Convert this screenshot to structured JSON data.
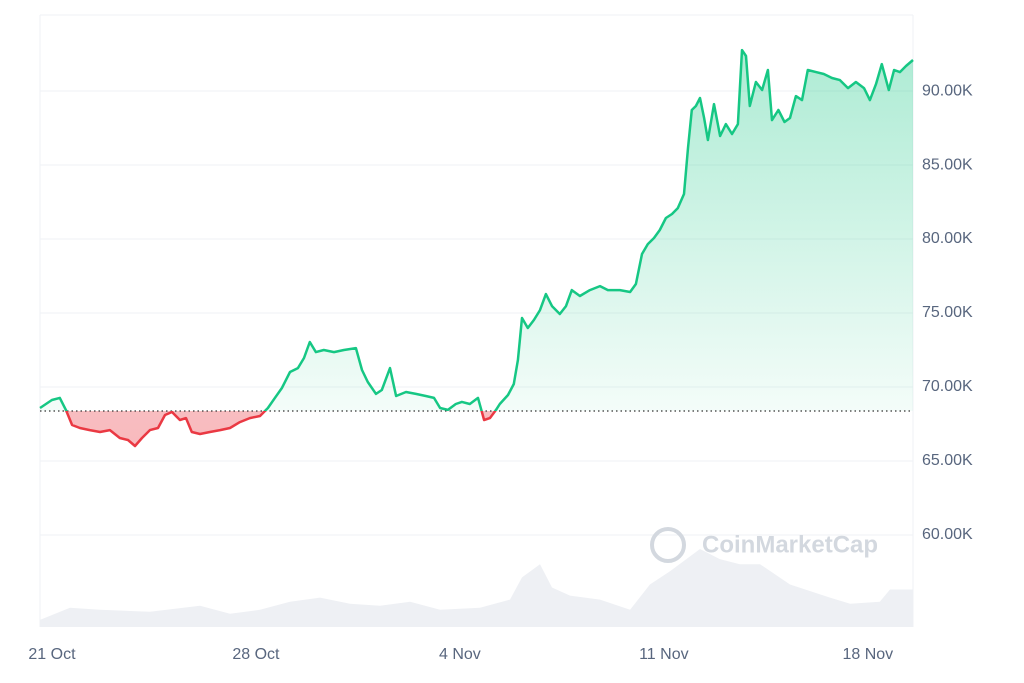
{
  "chart_data": {
    "type": "line",
    "watermark": "CoinMarketCap",
    "x": [
      -0.41,
      0,
      0.27,
      0.48,
      0.69,
      0.96,
      1.3,
      1.65,
      1.99,
      2.33,
      2.61,
      2.85,
      3.09,
      3.36,
      3.64,
      3.88,
      4.12,
      4.39,
      4.6,
      4.8,
      5.08,
      5.42,
      5.77,
      6.11,
      6.45,
      6.79,
      7.14,
      7.41,
      7.65,
      7.89,
      8.17,
      8.44,
      8.65,
      8.85,
      9.06,
      9.33,
      9.68,
      10.02,
      10.43,
      10.64,
      10.84,
      11.12,
      11.32,
      11.6,
      11.81,
      12.15,
      12.49,
      12.83,
      13.11,
      13.32,
      13.59,
      13.86,
      14.07,
      14.34,
      14.62,
      14.83,
      15.03,
      15.24,
      15.37,
      15.65,
      15.85,
      15.99,
      16.13,
      16.33,
      16.54,
      16.75,
      16.95,
      17.16,
      17.43,
      17.64,
      17.84,
      18.12,
      18.46,
      18.81,
      19.08,
      19.49,
      19.84,
      20.04,
      20.25,
      20.45,
      20.66,
      20.86,
      21.07,
      21.28,
      21.48,
      21.69,
      21.83,
      21.96,
      22.1,
      22.24,
      22.38,
      22.51,
      22.72,
      22.93,
      23.13,
      23.34,
      23.54,
      23.68,
      23.82,
      23.95,
      24.16,
      24.37,
      24.57,
      24.71,
      24.93,
      25.14,
      25.33,
      25.53,
      25.74,
      25.94,
      26.22,
      26.49,
      26.77,
      27.04,
      27.32,
      27.59,
      27.87,
      28.07,
      28.28,
      28.48,
      28.72,
      28.9,
      29.1,
      29.31,
      29.55
    ],
    "values": [
      68580,
      69120,
      69260,
      68450,
      67430,
      67230,
      67090,
      66960,
      67090,
      66550,
      66420,
      66010,
      66550,
      67090,
      67230,
      68110,
      68310,
      67770,
      67900,
      66960,
      66820,
      66960,
      67090,
      67230,
      67630,
      67900,
      68040,
      68580,
      69260,
      69930,
      71010,
      71280,
      71960,
      73040,
      72360,
      72500,
      72360,
      72500,
      72630,
      71150,
      70340,
      69530,
      69800,
      71280,
      69390,
      69660,
      69530,
      69390,
      69260,
      68580,
      68450,
      68850,
      68990,
      68850,
      69260,
      67770,
      67900,
      68450,
      68850,
      69460,
      70200,
      71820,
      74660,
      73990,
      74530,
      75200,
      76280,
      75470,
      74930,
      75470,
      76550,
      76150,
      76550,
      76820,
      76550,
      76550,
      76420,
      76960,
      78990,
      79660,
      80070,
      80610,
      81420,
      81690,
      82090,
      83040,
      86150,
      88720,
      88990,
      89530,
      88180,
      86690,
      89120,
      86960,
      87770,
      87100,
      87770,
      92770,
      92370,
      88990,
      90610,
      90070,
      91420,
      88040,
      88720,
      87910,
      88180,
      89660,
      89390,
      91420,
      91280,
      91150,
      90880,
      90740,
      90200,
      90610,
      90200,
      89390,
      90470,
      91820,
      90070,
      91420,
      91280,
      91690,
      92100
    ],
    "baseline": 68380,
    "up_color": "#16c784",
    "down_color": "#ea3943",
    "volume": {
      "x": [
        -0.41,
        0.62,
        1.65,
        3.36,
        5.08,
        6.11,
        7.14,
        8.17,
        9.2,
        10.23,
        11.26,
        12.29,
        13.32,
        14.69,
        15.72,
        16.13,
        16.75,
        17.16,
        17.78,
        18.81,
        19.84,
        20.52,
        21.21,
        22.24,
        22.92,
        23.61,
        24.3,
        24.81,
        25.33,
        26.7,
        27.39,
        28.41,
        28.76,
        29.55
      ],
      "values": [
        7,
        19,
        17,
        15,
        21,
        13,
        17,
        25,
        29,
        23,
        21,
        25,
        17,
        19,
        27,
        49,
        62,
        39,
        31,
        27,
        17,
        42,
        55,
        77,
        67,
        62,
        62,
        52,
        42,
        29,
        23,
        25,
        37,
        37
      ],
      "color": "#eef0f4"
    },
    "xlim": [
      -0.41,
      29.55
    ],
    "xticks": [
      {
        "value": 0,
        "label": "21 Oct"
      },
      {
        "value": 7,
        "label": "28 Oct"
      },
      {
        "value": 14,
        "label": "4 Nov"
      },
      {
        "value": 21,
        "label": "11 Nov"
      },
      {
        "value": 28,
        "label": "18 Nov"
      }
    ],
    "ylim": [
      53780,
      95140
    ],
    "yticks": [
      {
        "value": 60000,
        "label": "60.00K"
      },
      {
        "value": 65000,
        "label": "65.00K"
      },
      {
        "value": 70000,
        "label": "70.00K"
      },
      {
        "value": 75000,
        "label": "75.00K"
      },
      {
        "value": 80000,
        "label": "80.00K"
      },
      {
        "value": 85000,
        "label": "85.00K"
      },
      {
        "value": 90000,
        "label": "90.00K"
      }
    ],
    "grid": true
  }
}
